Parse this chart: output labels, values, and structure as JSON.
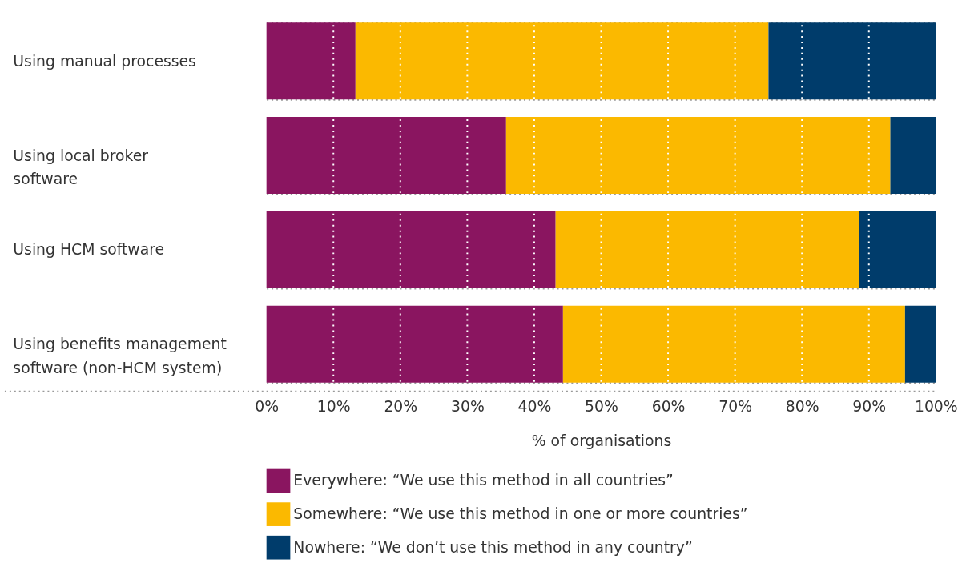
{
  "chart_data": {
    "type": "bar",
    "orientation": "horizontal",
    "stacked": true,
    "categories": [
      "Using manual processes",
      "Using local broker software",
      "Using HCM software",
      "Using benefits management software (non-HCM system)"
    ],
    "series": [
      {
        "name": "Everywhere: “We use this method in all countries”",
        "color": "#8a1560",
        "values": [
          13.3,
          35.8,
          43.2,
          44.3
        ]
      },
      {
        "name": "Somewhere: “We use this method in one or more countries”",
        "color": "#fbb900",
        "values": [
          61.7,
          57.4,
          45.3,
          51.1
        ]
      },
      {
        "name": "Nowhere: “We don’t use this method in any country”",
        "color": "#003c6b",
        "values": [
          25.0,
          6.8,
          11.5,
          4.6
        ]
      }
    ],
    "xlabel": "% of organisations",
    "xlim": [
      0,
      100
    ],
    "xticks": [
      {
        "value": 0,
        "label": "0%"
      },
      {
        "value": 10,
        "label": "10%"
      },
      {
        "value": 20,
        "label": "20%"
      },
      {
        "value": 30,
        "label": "30%"
      },
      {
        "value": 40,
        "label": "40%"
      },
      {
        "value": 50,
        "label": "50%"
      },
      {
        "value": 60,
        "label": "60%"
      },
      {
        "value": 70,
        "label": "70%"
      },
      {
        "value": 80,
        "label": "80%"
      },
      {
        "value": 90,
        "label": "90%"
      },
      {
        "value": 100,
        "label": "100%"
      }
    ],
    "grid": true,
    "legend": "bottom"
  }
}
